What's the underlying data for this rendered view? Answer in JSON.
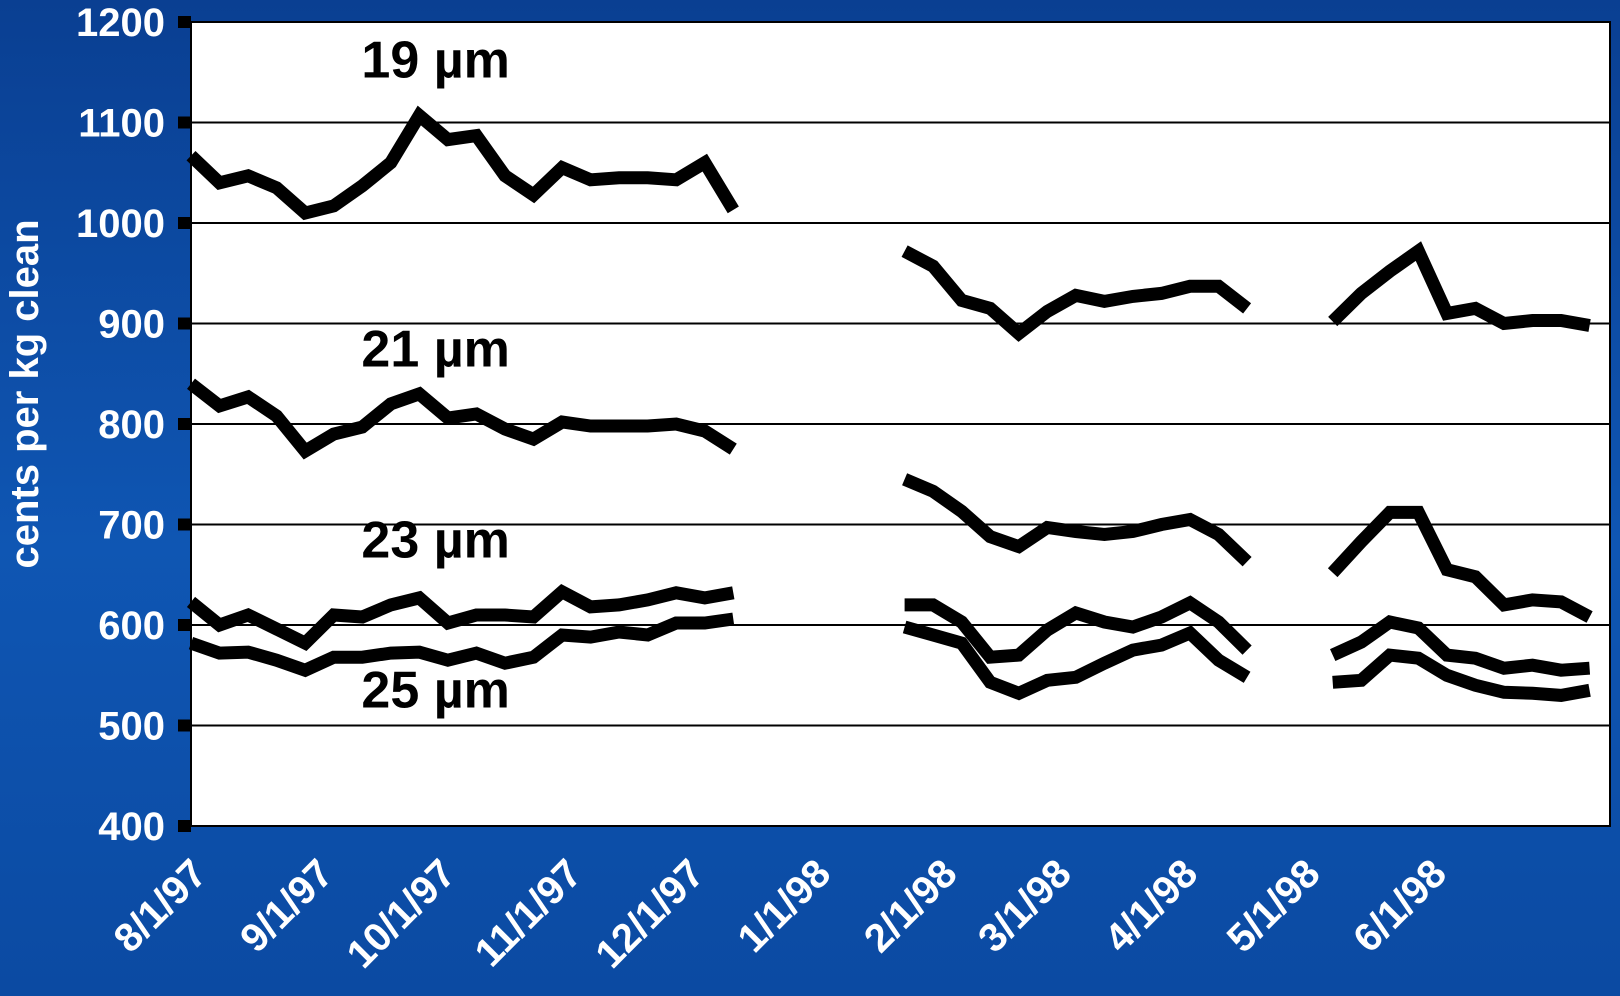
{
  "chart_data": {
    "type": "line",
    "ylabel": "cents per kg clean",
    "xlabel": "",
    "ylim": [
      400,
      1200
    ],
    "xlim": [
      "1997-08-01",
      "1998-07-15"
    ],
    "yticks": [
      400,
      500,
      600,
      700,
      800,
      900,
      1000,
      1100,
      1200
    ],
    "xticks": [
      {
        "label": "8/1/97",
        "date": "1997-08-01"
      },
      {
        "label": "9/1/97",
        "date": "1997-09-01"
      },
      {
        "label": "10/1/97",
        "date": "1997-10-01"
      },
      {
        "label": "11/1/97",
        "date": "1997-11-01"
      },
      {
        "label": "12/1/97",
        "date": "1997-12-01"
      },
      {
        "label": "1/1/98",
        "date": "1998-01-01"
      },
      {
        "label": "2/1/98",
        "date": "1998-02-01"
      },
      {
        "label": "3/1/98",
        "date": "1998-03-01"
      },
      {
        "label": "4/1/98",
        "date": "1998-04-01"
      },
      {
        "label": "5/1/98",
        "date": "1998-05-01"
      },
      {
        "label": "6/1/98",
        "date": "1998-06-01"
      }
    ],
    "grid": true,
    "legend": "inline labels",
    "colors": {
      "line": "#000000",
      "plot_bg": "#ffffff",
      "frame_bg": "#0f56b3",
      "tick_text": "#ffffff"
    },
    "series": [
      {
        "name": "19 µm",
        "segments": [
          [
            [
              "1997-08-01",
              1067
            ],
            [
              "1997-08-08",
              1040
            ],
            [
              "1997-08-15",
              1047
            ],
            [
              "1997-08-22",
              1035
            ],
            [
              "1997-08-29",
              1010
            ],
            [
              "1997-09-05",
              1017
            ],
            [
              "1997-09-12",
              1037
            ],
            [
              "1997-09-19",
              1060
            ],
            [
              "1997-09-26",
              1107
            ],
            [
              "1997-10-03",
              1083
            ],
            [
              "1997-10-10",
              1087
            ],
            [
              "1997-10-17",
              1047
            ],
            [
              "1997-10-24",
              1028
            ],
            [
              "1997-10-31",
              1055
            ],
            [
              "1997-11-07",
              1043
            ],
            [
              "1997-11-14",
              1045
            ],
            [
              "1997-11-21",
              1045
            ],
            [
              "1997-11-28",
              1043
            ],
            [
              "1997-12-05",
              1060
            ],
            [
              "1997-12-12",
              1013
            ]
          ],
          [
            [
              "1998-01-23",
              972
            ],
            [
              "1998-01-30",
              957
            ],
            [
              "1998-02-06",
              923
            ],
            [
              "1998-02-13",
              915
            ],
            [
              "1998-02-20",
              890
            ],
            [
              "1998-02-27",
              912
            ],
            [
              "1998-03-06",
              928
            ],
            [
              "1998-03-13",
              922
            ],
            [
              "1998-03-20",
              927
            ],
            [
              "1998-03-27",
              930
            ],
            [
              "1998-04-03",
              937
            ],
            [
              "1998-04-10",
              937
            ],
            [
              "1998-04-17",
              915
            ]
          ],
          [
            [
              "1998-05-08",
              902
            ],
            [
              "1998-05-15",
              930
            ],
            [
              "1998-05-22",
              952
            ],
            [
              "1998-05-29",
              972
            ],
            [
              "1998-06-05",
              910
            ],
            [
              "1998-06-12",
              915
            ],
            [
              "1998-06-19",
              900
            ],
            [
              "1998-06-26",
              903
            ],
            [
              "1998-07-03",
              903
            ],
            [
              "1998-07-10",
              898
            ]
          ]
        ]
      },
      {
        "name": "21 µm",
        "segments": [
          [
            [
              "1997-08-01",
              840
            ],
            [
              "1997-08-08",
              818
            ],
            [
              "1997-08-15",
              827
            ],
            [
              "1997-08-22",
              808
            ],
            [
              "1997-08-29",
              773
            ],
            [
              "1997-09-05",
              790
            ],
            [
              "1997-09-12",
              797
            ],
            [
              "1997-09-19",
              820
            ],
            [
              "1997-09-26",
              830
            ],
            [
              "1997-10-03",
              806
            ],
            [
              "1997-10-10",
              810
            ],
            [
              "1997-10-17",
              795
            ],
            [
              "1997-10-24",
              785
            ],
            [
              "1997-10-31",
              802
            ],
            [
              "1997-11-07",
              798
            ],
            [
              "1997-11-14",
              798
            ],
            [
              "1997-11-21",
              798
            ],
            [
              "1997-11-28",
              800
            ],
            [
              "1997-12-05",
              793
            ],
            [
              "1997-12-12",
              775
            ]
          ],
          [
            [
              "1998-01-23",
              745
            ],
            [
              "1998-01-30",
              733
            ],
            [
              "1998-02-06",
              713
            ],
            [
              "1998-02-13",
              688
            ],
            [
              "1998-02-20",
              678
            ],
            [
              "1998-02-27",
              697
            ],
            [
              "1998-03-06",
              693
            ],
            [
              "1998-03-13",
              690
            ],
            [
              "1998-03-20",
              693
            ],
            [
              "1998-03-27",
              700
            ],
            [
              "1998-04-03",
              705
            ],
            [
              "1998-04-10",
              690
            ],
            [
              "1998-04-17",
              663
            ]
          ],
          [
            [
              "1998-05-08",
              652
            ],
            [
              "1998-05-15",
              683
            ],
            [
              "1998-05-22",
              712
            ],
            [
              "1998-05-29",
              712
            ],
            [
              "1998-06-05",
              655
            ],
            [
              "1998-06-12",
              648
            ],
            [
              "1998-06-19",
              620
            ],
            [
              "1998-06-26",
              625
            ],
            [
              "1998-07-03",
              623
            ],
            [
              "1998-07-10",
              608
            ]
          ]
        ]
      },
      {
        "name": "23 µm",
        "segments": [
          [
            [
              "1997-08-01",
              623
            ],
            [
              "1997-08-08",
              600
            ],
            [
              "1997-08-15",
              610
            ],
            [
              "1997-08-22",
              596
            ],
            [
              "1997-08-29",
              582
            ],
            [
              "1997-09-05",
              610
            ],
            [
              "1997-09-12",
              608
            ],
            [
              "1997-09-19",
              620
            ],
            [
              "1997-09-26",
              627
            ],
            [
              "1997-10-03",
              602
            ],
            [
              "1997-10-10",
              610
            ],
            [
              "1997-10-17",
              610
            ],
            [
              "1997-10-24",
              608
            ],
            [
              "1997-10-31",
              633
            ],
            [
              "1997-11-07",
              618
            ],
            [
              "1997-11-14",
              620
            ],
            [
              "1997-11-21",
              625
            ],
            [
              "1997-11-28",
              632
            ],
            [
              "1997-12-05",
              627
            ],
            [
              "1997-12-12",
              632
            ]
          ],
          [
            [
              "1998-01-23",
              620
            ],
            [
              "1998-01-30",
              620
            ],
            [
              "1998-02-06",
              603
            ],
            [
              "1998-02-13",
              568
            ],
            [
              "1998-02-20",
              570
            ],
            [
              "1998-02-27",
              595
            ],
            [
              "1998-03-06",
              612
            ],
            [
              "1998-03-13",
              603
            ],
            [
              "1998-03-20",
              598
            ],
            [
              "1998-03-27",
              608
            ],
            [
              "1998-04-03",
              622
            ],
            [
              "1998-04-10",
              603
            ],
            [
              "1998-04-17",
              575
            ]
          ],
          [
            [
              "1998-05-08",
              570
            ],
            [
              "1998-05-15",
              583
            ],
            [
              "1998-05-22",
              603
            ],
            [
              "1998-05-29",
              597
            ],
            [
              "1998-06-05",
              570
            ],
            [
              "1998-06-12",
              567
            ],
            [
              "1998-06-19",
              557
            ],
            [
              "1998-06-26",
              560
            ],
            [
              "1998-07-03",
              555
            ],
            [
              "1998-07-10",
              557
            ]
          ]
        ]
      },
      {
        "name": "25 µm",
        "segments": [
          [
            [
              "1997-08-01",
              582
            ],
            [
              "1997-08-08",
              572
            ],
            [
              "1997-08-15",
              573
            ],
            [
              "1997-08-22",
              565
            ],
            [
              "1997-08-29",
              555
            ],
            [
              "1997-09-05",
              568
            ],
            [
              "1997-09-12",
              568
            ],
            [
              "1997-09-19",
              572
            ],
            [
              "1997-09-26",
              573
            ],
            [
              "1997-10-03",
              565
            ],
            [
              "1997-10-10",
              572
            ],
            [
              "1997-10-17",
              562
            ],
            [
              "1997-10-24",
              568
            ],
            [
              "1997-10-31",
              590
            ],
            [
              "1997-11-07",
              588
            ],
            [
              "1997-11-14",
              593
            ],
            [
              "1997-11-21",
              590
            ],
            [
              "1997-11-28",
              602
            ],
            [
              "1997-12-05",
              602
            ],
            [
              "1997-12-12",
              606
            ]
          ],
          [
            [
              "1998-01-23",
              598
            ],
            [
              "1998-01-30",
              590
            ],
            [
              "1998-02-06",
              582
            ],
            [
              "1998-02-13",
              543
            ],
            [
              "1998-02-20",
              532
            ],
            [
              "1998-02-27",
              545
            ],
            [
              "1998-03-06",
              548
            ],
            [
              "1998-03-13",
              562
            ],
            [
              "1998-03-20",
              575
            ],
            [
              "1998-03-27",
              580
            ],
            [
              "1998-04-03",
              592
            ],
            [
              "1998-04-10",
              565
            ],
            [
              "1998-04-17",
              548
            ]
          ],
          [
            [
              "1998-05-08",
              543
            ],
            [
              "1998-05-15",
              545
            ],
            [
              "1998-05-22",
              570
            ],
            [
              "1998-05-29",
              567
            ],
            [
              "1998-06-05",
              550
            ],
            [
              "1998-06-12",
              540
            ],
            [
              "1998-06-19",
              533
            ],
            [
              "1998-06-26",
              532
            ],
            [
              "1998-07-03",
              530
            ],
            [
              "1998-07-10",
              535
            ]
          ]
        ]
      }
    ],
    "annotations": [
      {
        "text": "19 µm",
        "series": "19 µm",
        "date": "1997-09-30",
        "value": 1145
      },
      {
        "text": "21 µm",
        "series": "21 µm",
        "date": "1997-09-30",
        "value": 857
      },
      {
        "text": "23 µm",
        "series": "23 µm",
        "date": "1997-09-30",
        "value": 667
      },
      {
        "text": "25 µm",
        "series": "25 µm",
        "date": "1997-09-30",
        "value": 518
      }
    ]
  }
}
